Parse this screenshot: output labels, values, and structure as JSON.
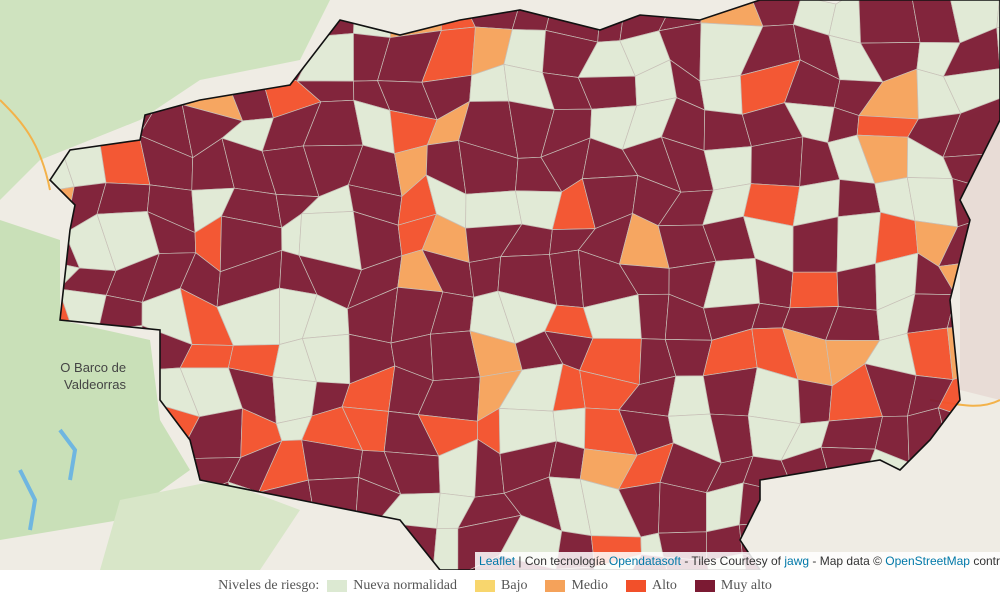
{
  "map": {
    "place_labels": [
      {
        "lines": [
          "O Barco de",
          "Valdeorras"
        ]
      }
    ],
    "attribution": {
      "leaflet": "Leaflet",
      "text1": " | Con tecnología ",
      "opendatasoft": "Opendatasoft",
      "text2": " - Tiles Courtesy of ",
      "jawg": "jawg",
      "text3": " - Map data © ",
      "osm": "OpenStreetMap",
      "text4": " contr"
    }
  },
  "legend": {
    "title": "Niveles de riesgo:",
    "items": [
      {
        "name": "Nueva normalidad",
        "color": "#dce9d2"
      },
      {
        "name": "Bajo",
        "color": "#f8d66d"
      },
      {
        "name": "Medio",
        "color": "#f5a25a"
      },
      {
        "name": "Alto",
        "color": "#f2502a"
      },
      {
        "name": "Muy alto",
        "color": "#7b1a33"
      }
    ]
  }
}
